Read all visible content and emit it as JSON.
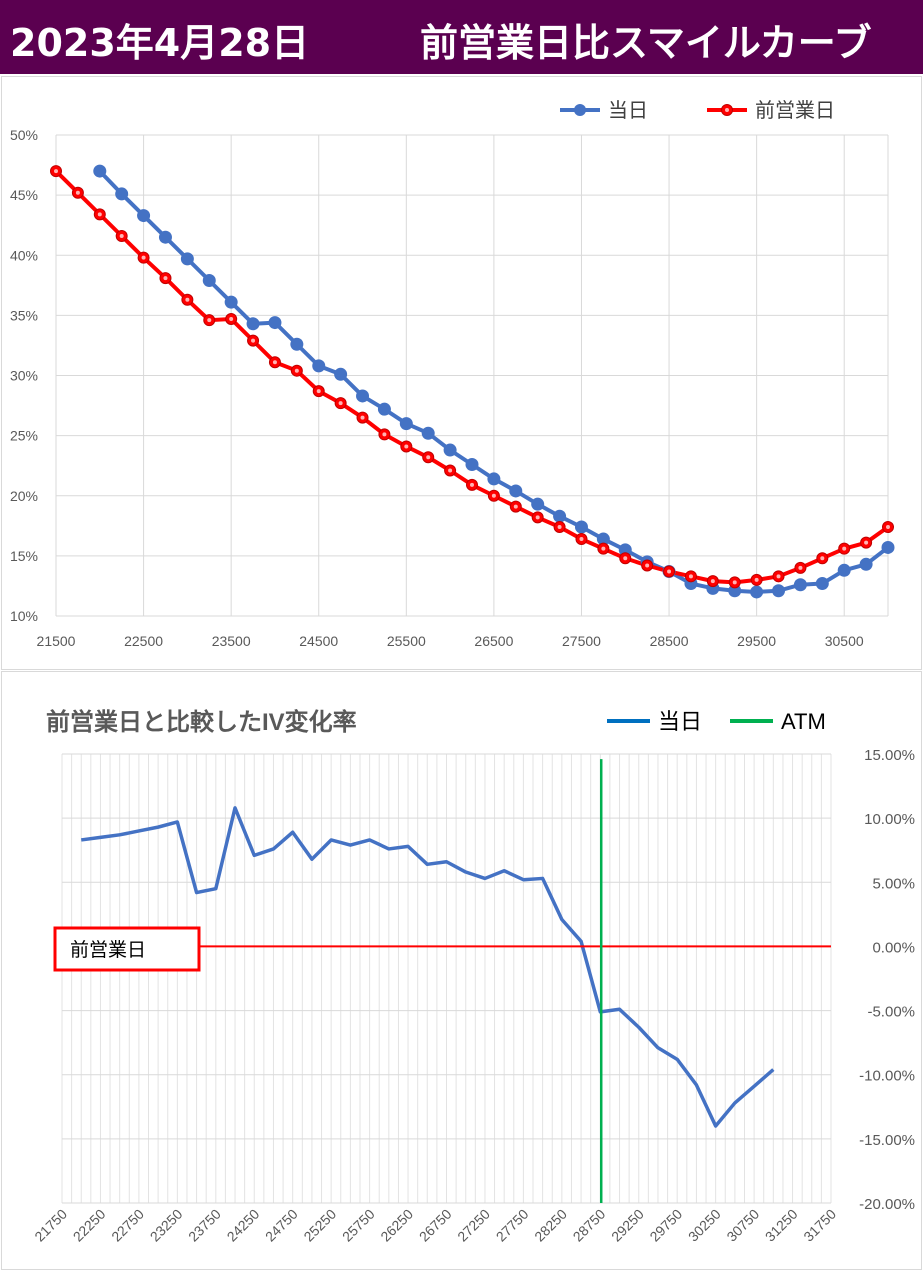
{
  "header": {
    "date": "2023年4月28日",
    "title": "前営業日比スマイルカーブ"
  },
  "chart1": {
    "legend": [
      "当日",
      "前営業日"
    ],
    "colors": {
      "today": "#4472c4",
      "prev": "#ff0000"
    },
    "y_ticks": [
      "50%",
      "45%",
      "40%",
      "35%",
      "30%",
      "25%",
      "20%",
      "15%",
      "10%"
    ],
    "x_ticks": [
      "21500",
      "22500",
      "23500",
      "24500",
      "25500",
      "26500",
      "27500",
      "28500",
      "29500",
      "30500"
    ]
  },
  "chart2": {
    "title": "前営業日と比較したIV変化率",
    "legend": [
      "当日",
      "ATM"
    ],
    "colors": {
      "line": "#4472c4",
      "atm": "#00b050",
      "zero": "#ff0000"
    },
    "zero_label": "前営業日",
    "y_ticks": [
      "15.00%",
      "10.00%",
      "5.00%",
      "0.00%",
      "-5.00%",
      "-10.00%",
      "-15.00%",
      "-20.00%"
    ],
    "x_ticks": [
      "21750",
      "22250",
      "22750",
      "23250",
      "23750",
      "24250",
      "24750",
      "25250",
      "25750",
      "26250",
      "26750",
      "27250",
      "27750",
      "28250",
      "28750",
      "29250",
      "29750",
      "30250",
      "30750",
      "31250",
      "31750"
    ]
  },
  "chart_data": [
    {
      "type": "line",
      "xlim": [
        21500,
        31000
      ],
      "ylim": [
        10,
        50
      ],
      "y_unit": "%",
      "series": [
        {
          "name": "当日",
          "x": [
            22000,
            22250,
            22500,
            22750,
            23000,
            23250,
            23500,
            23750,
            24000,
            24250,
            24500,
            24750,
            25000,
            25250,
            25500,
            25750,
            26000,
            26250,
            26500,
            26750,
            27000,
            27250,
            27500,
            27750,
            28000,
            28250,
            28500,
            28750,
            29000,
            29250,
            29500,
            29750,
            30000,
            30250,
            30500,
            30750,
            31000
          ],
          "values": [
            47.0,
            45.1,
            43.3,
            41.5,
            39.7,
            37.9,
            36.1,
            34.3,
            34.4,
            32.6,
            30.8,
            30.1,
            28.3,
            27.2,
            26.0,
            25.2,
            23.8,
            22.6,
            21.4,
            20.4,
            19.3,
            18.3,
            17.4,
            16.4,
            15.5,
            14.5,
            13.7,
            12.7,
            12.3,
            12.1,
            12.0,
            12.1,
            12.6,
            12.7,
            13.8,
            14.3,
            15.7
          ]
        },
        {
          "name": "前営業日",
          "x": [
            21500,
            21750,
            22000,
            22250,
            22500,
            22750,
            23000,
            23250,
            23500,
            23750,
            24000,
            24250,
            24500,
            24750,
            25000,
            25250,
            25500,
            25750,
            26000,
            26250,
            26500,
            26750,
            27000,
            27250,
            27500,
            27750,
            28000,
            28250,
            28500,
            28750,
            29000,
            29250,
            29500,
            29750,
            30000,
            30250,
            30500,
            30750,
            31000
          ],
          "values": [
            47.0,
            45.2,
            43.4,
            41.6,
            39.8,
            38.1,
            36.3,
            34.6,
            34.7,
            32.9,
            31.1,
            30.4,
            28.7,
            27.7,
            26.5,
            25.1,
            24.1,
            23.2,
            22.1,
            20.9,
            20.0,
            19.1,
            18.2,
            17.4,
            16.4,
            15.6,
            14.8,
            14.2,
            13.7,
            13.3,
            12.9,
            12.8,
            13.0,
            13.3,
            14.0,
            14.8,
            15.6,
            16.1,
            17.4
          ]
        }
      ],
      "legend_position": "top-right",
      "grid": true
    },
    {
      "type": "line",
      "title": "前営業日と比較したIV変化率",
      "xlim": [
        21750,
        31750
      ],
      "ylim": [
        -20,
        15
      ],
      "y_unit": "%",
      "series": [
        {
          "name": "当日",
          "x": [
            22000,
            22250,
            22500,
            22750,
            23000,
            23250,
            23500,
            23750,
            24000,
            24250,
            24500,
            24750,
            25000,
            25250,
            25500,
            25750,
            26000,
            26250,
            26500,
            26750,
            27000,
            27250,
            27500,
            27750,
            28000,
            28250,
            28500,
            28750,
            29000,
            29250,
            29500,
            29750,
            30000,
            30250,
            30500,
            30750,
            31000
          ],
          "values": [
            8.3,
            8.5,
            8.7,
            9.0,
            9.3,
            9.7,
            4.2,
            4.5,
            10.8,
            7.1,
            7.6,
            8.9,
            6.8,
            8.3,
            7.9,
            8.3,
            7.6,
            7.8,
            6.4,
            6.6,
            5.8,
            5.3,
            5.9,
            5.2,
            5.3,
            2.1,
            0.4,
            -5.1,
            -4.9,
            -6.3,
            -7.9,
            -8.8,
            -10.8,
            -14.0,
            -12.2,
            -10.9,
            -9.6
          ]
        },
        {
          "name": "ATM",
          "x": [
            28762,
            28762
          ],
          "values": [
            14.6,
            -20
          ]
        }
      ],
      "reference_line": {
        "y": 0,
        "label": "前営業日"
      },
      "legend_position": "top-right",
      "grid": true
    }
  ]
}
